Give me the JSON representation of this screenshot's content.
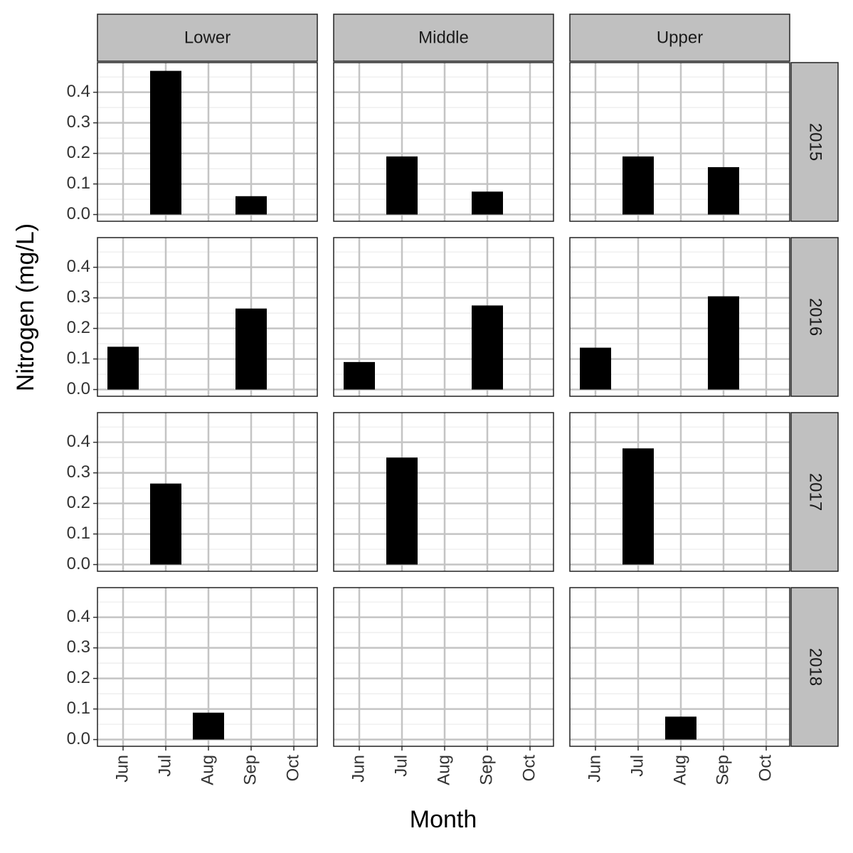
{
  "chart_data": {
    "type": "bar",
    "x_label": "Month",
    "y_label": "Nitrogen (mg/L)",
    "categories": [
      "Jun",
      "Jul",
      "Aug",
      "Sep",
      "Oct"
    ],
    "facet_columns": [
      "Lower",
      "Middle",
      "Upper"
    ],
    "facet_rows": [
      "2015",
      "2016",
      "2017",
      "2018"
    ],
    "panels": [
      [
        [
          null,
          0.47,
          null,
          0.06,
          null
        ],
        [
          null,
          0.19,
          null,
          0.075,
          null
        ],
        [
          null,
          0.19,
          null,
          0.155,
          null
        ]
      ],
      [
        [
          0.14,
          null,
          null,
          0.265,
          null
        ],
        [
          0.09,
          null,
          null,
          0.275,
          null
        ],
        [
          0.137,
          null,
          null,
          0.305,
          null
        ]
      ],
      [
        [
          null,
          0.265,
          null,
          null,
          null
        ],
        [
          null,
          0.35,
          null,
          null,
          null
        ],
        [
          null,
          0.38,
          null,
          null,
          null
        ]
      ],
      [
        [
          null,
          null,
          0.088,
          null,
          null
        ],
        [
          null,
          null,
          null,
          null,
          null
        ],
        [
          null,
          null,
          0.075,
          null,
          null
        ]
      ]
    ],
    "color": "#000000",
    "ylim": [
      -0.022,
      0.497
    ],
    "yticks": [
      {
        "value": 0,
        "label": "0.0"
      },
      {
        "value": 0.1,
        "label": "0.1"
      },
      {
        "value": 0.2,
        "label": "0.2"
      },
      {
        "value": 0.3,
        "label": "0.3"
      },
      {
        "value": 0.4,
        "label": "0.4"
      }
    ],
    "yminor": [
      0.05,
      0.15,
      0.25,
      0.35,
      0.45
    ],
    "grid": true
  }
}
